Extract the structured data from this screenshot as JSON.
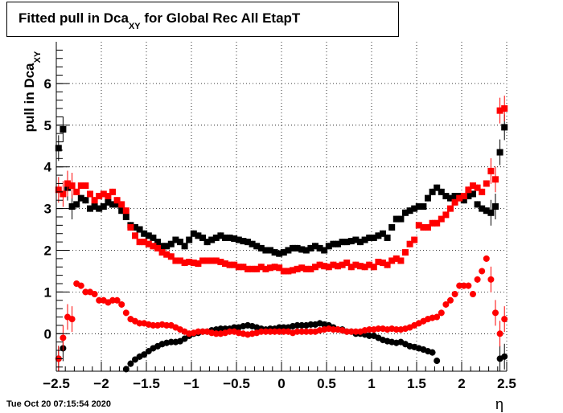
{
  "title_main": "Fitted pull in Dca",
  "title_sub": "XY",
  "title_rest": " for Global Rec All EtapT",
  "ylabel_main": "pull in Dca",
  "ylabel_sub": "XY",
  "xlabel": "η",
  "timestamp": "Tue Oct 20 07:15:54 2020",
  "colors": {
    "black": "#000000",
    "red": "#ff0000"
  },
  "chart_data": {
    "type": "scatter",
    "title": "Fitted pull in Dca XY for Global Rec All EtapT",
    "xlabel": "η",
    "ylabel": "pull in Dca XY",
    "xlim": [
      -2.5,
      2.5
    ],
    "ylim": [
      -0.9,
      7.0
    ],
    "grid": true,
    "x_ticks": [
      -2.5,
      -2,
      -1.5,
      -1,
      -0.5,
      0,
      0.5,
      1,
      1.5,
      2,
      2.5
    ],
    "x_tick_labels": [
      "−2.5",
      "−2",
      "−1.5",
      "−1",
      "−0.5",
      "0",
      "0.5",
      "1",
      "1.5",
      "2",
      "2.5"
    ],
    "y_ticks": [
      0,
      1,
      2,
      3,
      4,
      5,
      6
    ],
    "y_tick_labels": [
      "0",
      "1",
      "2",
      "3",
      "4",
      "5",
      "6"
    ],
    "series": [
      {
        "marker": "square",
        "color": "#000000",
        "x": [
          -2.475,
          -2.425,
          -2.375,
          -2.325,
          -2.275,
          -2.225,
          -2.175,
          -2.125,
          -2.075,
          -2.025,
          -1.975,
          -1.925,
          -1.875,
          -1.825,
          -1.775,
          -1.725,
          -1.675,
          -1.625,
          -1.575,
          -1.525,
          -1.475,
          -1.425,
          -1.375,
          -1.325,
          -1.275,
          -1.225,
          -1.175,
          -1.125,
          -1.075,
          -1.025,
          -0.975,
          -0.925,
          -0.875,
          -0.825,
          -0.775,
          -0.725,
          -0.675,
          -0.625,
          -0.575,
          -0.525,
          -0.475,
          -0.425,
          -0.375,
          -0.325,
          -0.275,
          -0.225,
          -0.175,
          -0.125,
          -0.075,
          -0.025,
          0.025,
          0.075,
          0.125,
          0.175,
          0.225,
          0.275,
          0.325,
          0.375,
          0.425,
          0.475,
          0.525,
          0.575,
          0.625,
          0.675,
          0.725,
          0.775,
          0.825,
          0.875,
          0.925,
          0.975,
          1.025,
          1.075,
          1.125,
          1.175,
          1.225,
          1.275,
          1.325,
          1.375,
          1.425,
          1.475,
          1.525,
          1.575,
          1.625,
          1.675,
          1.725,
          1.775,
          1.825,
          1.875,
          1.925,
          1.975,
          2.025,
          2.075,
          2.125,
          2.175,
          2.225,
          2.275,
          2.325,
          2.375,
          2.425,
          2.475
        ],
        "y": [
          4.45,
          4.9,
          3.5,
          3.05,
          3.1,
          3.25,
          3.2,
          3.0,
          3.05,
          3.0,
          3.05,
          3.15,
          3.1,
          3.1,
          2.95,
          2.8,
          2.6,
          2.55,
          2.5,
          2.4,
          2.35,
          2.3,
          2.2,
          2.1,
          2.1,
          2.15,
          2.25,
          2.2,
          2.1,
          2.25,
          2.4,
          2.35,
          2.3,
          2.2,
          2.25,
          2.3,
          2.35,
          2.3,
          2.3,
          2.28,
          2.25,
          2.22,
          2.2,
          2.15,
          2.1,
          2.05,
          2.0,
          2.0,
          1.95,
          1.92,
          1.95,
          2.0,
          2.05,
          2.05,
          2.02,
          2.0,
          2.05,
          2.1,
          2.05,
          2.0,
          2.1,
          2.15,
          2.15,
          2.2,
          2.2,
          2.22,
          2.25,
          2.2,
          2.25,
          2.3,
          2.3,
          2.35,
          2.4,
          2.3,
          2.55,
          2.75,
          2.75,
          2.9,
          2.95,
          3.0,
          3.05,
          3.05,
          3.25,
          3.4,
          3.5,
          3.4,
          3.3,
          3.25,
          3.3,
          3.3,
          3.2,
          3.3,
          3.35,
          3.1,
          3.0,
          2.95,
          2.9,
          3.05,
          4.35,
          4.95
        ]
      },
      {
        "marker": "square",
        "color": "#ff0000",
        "x": [
          -2.475,
          -2.425,
          -2.375,
          -2.325,
          -2.275,
          -2.225,
          -2.175,
          -2.125,
          -2.075,
          -2.025,
          -1.975,
          -1.925,
          -1.875,
          -1.825,
          -1.775,
          -1.725,
          -1.675,
          -1.625,
          -1.575,
          -1.525,
          -1.475,
          -1.425,
          -1.375,
          -1.325,
          -1.275,
          -1.225,
          -1.175,
          -1.125,
          -1.075,
          -1.025,
          -0.975,
          -0.925,
          -0.875,
          -0.825,
          -0.775,
          -0.725,
          -0.675,
          -0.625,
          -0.575,
          -0.525,
          -0.475,
          -0.425,
          -0.375,
          -0.325,
          -0.275,
          -0.225,
          -0.175,
          -0.125,
          -0.075,
          -0.025,
          0.025,
          0.075,
          0.125,
          0.175,
          0.225,
          0.275,
          0.325,
          0.375,
          0.425,
          0.475,
          0.525,
          0.575,
          0.625,
          0.675,
          0.725,
          0.775,
          0.825,
          0.875,
          0.925,
          0.975,
          1.025,
          1.075,
          1.125,
          1.175,
          1.225,
          1.275,
          1.325,
          1.375,
          1.425,
          1.475,
          1.525,
          1.575,
          1.625,
          1.675,
          1.725,
          1.775,
          1.825,
          1.875,
          1.925,
          1.975,
          2.025,
          2.075,
          2.125,
          2.175,
          2.225,
          2.275,
          2.325,
          2.375,
          2.425,
          2.475
        ],
        "y": [
          3.45,
          3.35,
          3.6,
          3.55,
          3.4,
          3.55,
          3.55,
          3.35,
          3.2,
          3.3,
          3.35,
          3.3,
          3.4,
          3.2,
          3.1,
          2.95,
          2.55,
          2.35,
          2.2,
          2.2,
          2.15,
          2.1,
          2.05,
          1.95,
          1.9,
          1.85,
          1.75,
          1.75,
          1.7,
          1.72,
          1.7,
          1.68,
          1.75,
          1.75,
          1.75,
          1.75,
          1.72,
          1.68,
          1.65,
          1.65,
          1.6,
          1.6,
          1.55,
          1.55,
          1.55,
          1.6,
          1.55,
          1.58,
          1.6,
          1.58,
          1.5,
          1.5,
          1.52,
          1.55,
          1.58,
          1.55,
          1.55,
          1.6,
          1.65,
          1.62,
          1.6,
          1.65,
          1.62,
          1.65,
          1.7,
          1.6,
          1.65,
          1.62,
          1.6,
          1.65,
          1.6,
          1.72,
          1.7,
          1.65,
          1.75,
          1.8,
          1.75,
          1.95,
          2.15,
          2.25,
          2.6,
          2.55,
          2.55,
          2.65,
          2.65,
          2.75,
          2.85,
          3.0,
          3.15,
          3.25,
          3.3,
          3.45,
          3.55,
          3.5,
          3.4,
          3.6,
          3.9,
          3.7,
          5.35,
          5.4
        ]
      },
      {
        "marker": "circle",
        "color": "#000000",
        "x": [
          -2.475,
          -2.425,
          -1.725,
          -1.675,
          -1.625,
          -1.575,
          -1.525,
          -1.475,
          -1.425,
          -1.375,
          -1.325,
          -1.275,
          -1.225,
          -1.175,
          -1.125,
          -1.075,
          -1.025,
          -0.975,
          -0.925,
          -0.875,
          -0.825,
          -0.775,
          -0.725,
          -0.675,
          -0.625,
          -0.575,
          -0.525,
          -0.475,
          -0.425,
          -0.375,
          -0.325,
          -0.275,
          -0.225,
          -0.175,
          -0.125,
          -0.075,
          -0.025,
          0.025,
          0.075,
          0.125,
          0.175,
          0.225,
          0.275,
          0.325,
          0.375,
          0.425,
          0.475,
          0.525,
          0.575,
          0.625,
          0.675,
          0.725,
          0.775,
          0.825,
          0.875,
          0.925,
          0.975,
          1.025,
          1.075,
          1.125,
          1.175,
          1.225,
          1.275,
          1.325,
          1.375,
          1.425,
          1.475,
          1.525,
          1.575,
          1.625,
          1.675,
          1.725,
          2.425,
          2.475
        ],
        "y": [
          -0.6,
          -0.35,
          -0.85,
          -0.72,
          -0.62,
          -0.55,
          -0.5,
          -0.42,
          -0.35,
          -0.3,
          -0.25,
          -0.22,
          -0.2,
          -0.2,
          -0.18,
          -0.12,
          -0.05,
          0.0,
          0.02,
          0.05,
          0.05,
          0.08,
          0.1,
          0.12,
          0.12,
          0.12,
          0.15,
          0.15,
          0.18,
          0.2,
          0.18,
          0.15,
          0.12,
          0.1,
          0.12,
          0.12,
          0.15,
          0.15,
          0.15,
          0.18,
          0.2,
          0.2,
          0.2,
          0.22,
          0.22,
          0.25,
          0.22,
          0.2,
          0.15,
          0.1,
          0.1,
          0.05,
          0.05,
          0.0,
          0.0,
          -0.02,
          -0.05,
          -0.05,
          -0.1,
          -0.15,
          -0.18,
          -0.2,
          -0.22,
          -0.2,
          -0.25,
          -0.3,
          -0.32,
          -0.35,
          -0.38,
          -0.42,
          -0.45,
          -0.65,
          -0.6,
          -0.55
        ]
      },
      {
        "marker": "circle",
        "color": "#ff0000",
        "x": [
          -2.475,
          -2.425,
          -2.375,
          -2.325,
          -2.275,
          -2.225,
          -2.175,
          -2.125,
          -2.075,
          -2.025,
          -1.975,
          -1.925,
          -1.875,
          -1.825,
          -1.775,
          -1.725,
          -1.675,
          -1.625,
          -1.575,
          -1.525,
          -1.475,
          -1.425,
          -1.375,
          -1.325,
          -1.275,
          -1.225,
          -1.175,
          -1.125,
          -1.075,
          -1.025,
          -0.975,
          -0.925,
          -0.875,
          -0.825,
          -0.775,
          -0.725,
          -0.675,
          -0.625,
          -0.575,
          -0.525,
          -0.475,
          -0.425,
          -0.375,
          -0.325,
          -0.275,
          -0.225,
          -0.175,
          -0.125,
          -0.075,
          -0.025,
          0.025,
          0.075,
          0.125,
          0.175,
          0.225,
          0.275,
          0.325,
          0.375,
          0.425,
          0.475,
          0.525,
          0.575,
          0.625,
          0.675,
          0.725,
          0.775,
          0.825,
          0.875,
          0.925,
          0.975,
          1.025,
          1.075,
          1.125,
          1.175,
          1.225,
          1.275,
          1.325,
          1.375,
          1.425,
          1.475,
          1.525,
          1.575,
          1.625,
          1.675,
          1.725,
          1.775,
          1.825,
          1.875,
          1.925,
          1.975,
          2.025,
          2.075,
          2.125,
          2.175,
          2.225,
          2.275,
          2.325,
          2.375,
          2.425,
          2.475
        ],
        "y": [
          -0.6,
          -0.1,
          0.4,
          0.35,
          1.2,
          1.15,
          1.0,
          1.0,
          0.95,
          0.8,
          0.8,
          0.75,
          0.8,
          0.8,
          0.7,
          0.5,
          0.35,
          0.3,
          0.25,
          0.25,
          0.22,
          0.2,
          0.2,
          0.22,
          0.2,
          0.2,
          0.15,
          0.1,
          0.05,
          0.0,
          0.02,
          0.05,
          0.05,
          0.05,
          0.02,
          0.0,
          0.0,
          0.02,
          0.05,
          0.05,
          0.02,
          0.0,
          -0.02,
          0.0,
          0.02,
          0.05,
          0.05,
          0.05,
          0.05,
          0.05,
          0.05,
          0.05,
          0.02,
          0.05,
          0.05,
          0.05,
          0.05,
          0.05,
          0.08,
          0.1,
          0.12,
          0.1,
          0.1,
          0.08,
          0.05,
          0.05,
          0.05,
          0.05,
          0.08,
          0.1,
          0.1,
          0.12,
          0.12,
          0.1,
          0.12,
          0.1,
          0.1,
          0.12,
          0.15,
          0.2,
          0.25,
          0.3,
          0.35,
          0.38,
          0.4,
          0.5,
          0.7,
          0.8,
          0.95,
          1.15,
          1.15,
          1.15,
          0.95,
          1.3,
          1.5,
          1.8,
          1.3,
          0.5,
          0.0,
          0.35
        ]
      }
    ]
  }
}
